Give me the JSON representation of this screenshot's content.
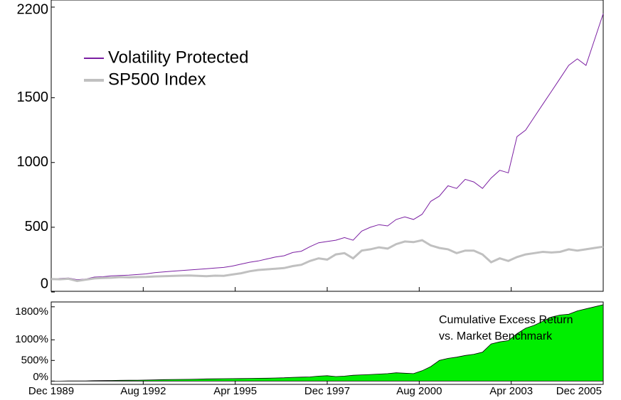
{
  "chart_data": [
    {
      "type": "line",
      "x": [
        "1989-12",
        "1990-03",
        "1990-06",
        "1990-09",
        "1990-12",
        "1991-03",
        "1991-06",
        "1991-09",
        "1991-12",
        "1992-03",
        "1992-06",
        "1992-09",
        "1992-12",
        "1993-03",
        "1993-06",
        "1993-09",
        "1993-12",
        "1994-03",
        "1994-06",
        "1994-09",
        "1994-12",
        "1995-03",
        "1995-06",
        "1995-09",
        "1995-12",
        "1996-03",
        "1996-06",
        "1996-09",
        "1996-12",
        "1997-03",
        "1997-06",
        "1997-09",
        "1997-12",
        "1998-03",
        "1998-06",
        "1998-09",
        "1998-12",
        "1999-03",
        "1999-06",
        "1999-09",
        "1999-12",
        "2000-03",
        "2000-06",
        "2000-09",
        "2000-12",
        "2001-03",
        "2001-06",
        "2001-09",
        "2001-12",
        "2002-03",
        "2002-06",
        "2002-09",
        "2002-12",
        "2003-03",
        "2003-06",
        "2003-09",
        "2003-12",
        "2004-03",
        "2004-06",
        "2004-09",
        "2004-12",
        "2005-03",
        "2005-06",
        "2005-09",
        "2005-12"
      ],
      "series": [
        {
          "name": "Volatility Protected",
          "color": "#7b1fa2",
          "width": 1,
          "values": [
            100,
            105,
            108,
            95,
            100,
            115,
            118,
            125,
            128,
            130,
            135,
            140,
            150,
            155,
            160,
            165,
            170,
            175,
            180,
            185,
            190,
            200,
            215,
            230,
            240,
            255,
            270,
            280,
            305,
            315,
            350,
            380,
            390,
            400,
            420,
            400,
            470,
            500,
            520,
            510,
            560,
            580,
            560,
            600,
            700,
            740,
            820,
            800,
            870,
            850,
            800,
            880,
            940,
            920,
            1200,
            1250,
            1350,
            1450,
            1550,
            1650,
            1750,
            1800,
            1750,
            1950,
            2150
          ]
        },
        {
          "name": "SP500 Index",
          "color": "#c0c0c0",
          "width": 3,
          "values": [
            100,
            98,
            102,
            85,
            95,
            105,
            108,
            110,
            115,
            113,
            115,
            117,
            120,
            122,
            124,
            126,
            128,
            125,
            122,
            126,
            125,
            135,
            145,
            160,
            170,
            175,
            180,
            185,
            200,
            210,
            240,
            260,
            250,
            290,
            300,
            260,
            320,
            330,
            345,
            335,
            370,
            390,
            385,
            400,
            360,
            340,
            330,
            300,
            320,
            320,
            290,
            230,
            260,
            240,
            270,
            290,
            300,
            310,
            305,
            310,
            330,
            320,
            330,
            340,
            350
          ]
        }
      ],
      "xlim": [
        "1989-12",
        "2005-12"
      ],
      "xticks": [
        "1992-08",
        "1995-04",
        "1997-12",
        "2000-08",
        "2003-04"
      ],
      "ylim": [
        0,
        2200
      ],
      "yticks": [
        0,
        500,
        1000,
        1500,
        2200
      ]
    },
    {
      "type": "area",
      "x": [
        "1989-12",
        "1990-03",
        "1990-06",
        "1990-09",
        "1990-12",
        "1991-03",
        "1991-06",
        "1991-09",
        "1991-12",
        "1992-03",
        "1992-06",
        "1992-09",
        "1992-12",
        "1993-03",
        "1993-06",
        "1993-09",
        "1993-12",
        "1994-03",
        "1994-06",
        "1994-09",
        "1994-12",
        "1995-03",
        "1995-06",
        "1995-09",
        "1995-12",
        "1996-03",
        "1996-06",
        "1996-09",
        "1996-12",
        "1997-03",
        "1997-06",
        "1997-09",
        "1997-12",
        "1998-03",
        "1998-06",
        "1998-09",
        "1998-12",
        "1999-03",
        "1999-06",
        "1999-09",
        "1999-12",
        "2000-03",
        "2000-06",
        "2000-09",
        "2000-12",
        "2001-03",
        "2001-06",
        "2001-09",
        "2001-12",
        "2002-03",
        "2002-06",
        "2002-09",
        "2002-12",
        "2003-03",
        "2003-06",
        "2003-09",
        "2003-12",
        "2004-03",
        "2004-06",
        "2004-09",
        "2004-12",
        "2005-03",
        "2005-06",
        "2005-09",
        "2005-12"
      ],
      "values": [
        0,
        0,
        2,
        5,
        5,
        10,
        12,
        15,
        18,
        20,
        22,
        25,
        30,
        35,
        38,
        40,
        42,
        48,
        52,
        55,
        58,
        60,
        62,
        65,
        68,
        70,
        75,
        80,
        90,
        95,
        100,
        120,
        130,
        110,
        120,
        140,
        150,
        160,
        170,
        180,
        200,
        190,
        180,
        250,
        350,
        500,
        550,
        580,
        620,
        650,
        700,
        900,
        950,
        980,
        1150,
        1280,
        1350,
        1450,
        1550,
        1600,
        1620,
        1700,
        1750,
        1800,
        1850
      ],
      "color": "#00ee00",
      "annotation": [
        "Cumulative Excess Return",
        "vs. Market Benchmark"
      ],
      "xlim": [
        "1989-12",
        "2005-12"
      ],
      "xticks": [
        {
          "value": "1989-12",
          "label": "Dec 1989"
        },
        {
          "value": "1992-08",
          "label": "Aug 1992"
        },
        {
          "value": "1995-04",
          "label": "Apr 1995"
        },
        {
          "value": "1997-12",
          "label": "Dec 1997"
        },
        {
          "value": "2000-08",
          "label": "Aug 2000"
        },
        {
          "value": "2003-04",
          "label": "Apr 2003"
        },
        {
          "value": "2005-12",
          "label": "Dec 2005"
        }
      ],
      "ylim": [
        -80,
        1900
      ],
      "yticks": [
        {
          "value": 0,
          "label": "0%"
        },
        {
          "value": 500,
          "label": "500%"
        },
        {
          "value": 1000,
          "label": "1000%"
        },
        {
          "value": 1800,
          "label": "1800%"
        }
      ]
    }
  ]
}
